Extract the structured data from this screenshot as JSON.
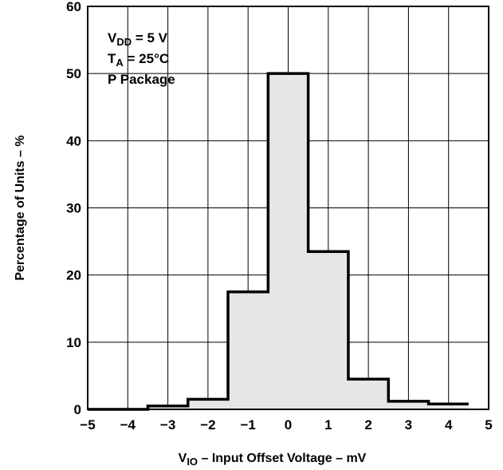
{
  "chart_data": {
    "type": "bar",
    "bin_edges": [
      -5,
      -4,
      -3.5,
      -2.5,
      -1.5,
      -0.5,
      0.5,
      1.5,
      2.5,
      3.5,
      4.5
    ],
    "values": [
      0,
      0,
      0.5,
      1.5,
      17.5,
      50,
      23.5,
      4.5,
      1.2,
      0.8
    ],
    "xlim": [
      -5,
      5
    ],
    "ylim": [
      0,
      60
    ],
    "xticks": [
      "−5",
      "−4",
      "−3",
      "−2",
      "−1",
      "0",
      "1",
      "2",
      "3",
      "4",
      "5"
    ],
    "yticks": [
      "0",
      "10",
      "20",
      "30",
      "40",
      "50",
      "60"
    ],
    "grid": true,
    "bar_fill": "#e6e6e6",
    "bar_stroke": "#000000",
    "ylabel": "Percentage of Units – %",
    "xlabel": {
      "prefix": "V",
      "subscript": "IO",
      "suffix": " – Input Offset Voltage – mV"
    },
    "annotations": [
      {
        "prefix": "V",
        "subscript": "DD",
        "suffix": " = 5 V"
      },
      {
        "prefix": "T",
        "subscript": "A",
        "suffix": " = 25°C"
      },
      {
        "prefix": "P Package",
        "subscript": "",
        "suffix": ""
      }
    ]
  }
}
